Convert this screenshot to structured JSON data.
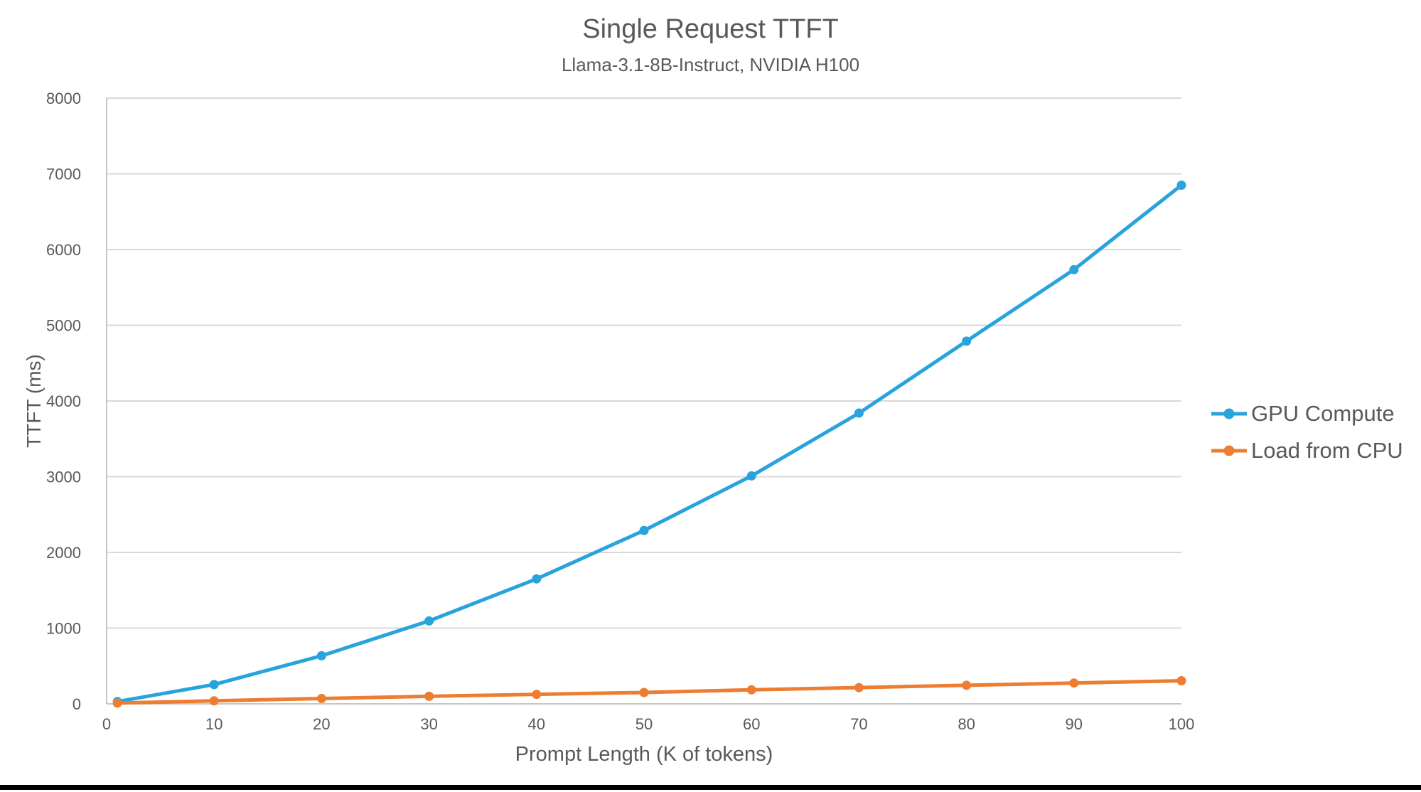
{
  "chart_data": {
    "type": "line",
    "title": "Single Request TTFT",
    "subtitle": "Llama-3.1-8B-Instruct, NVIDIA H100",
    "xlabel": "Prompt Length (K of tokens)",
    "ylabel": "TTFT (ms)",
    "x": [
      1,
      10,
      20,
      30,
      40,
      50,
      60,
      70,
      80,
      90,
      100
    ],
    "series": [
      {
        "name": "GPU Compute",
        "color": "#29A3DC",
        "values": [
          30,
          255,
          635,
          1095,
          1650,
          2290,
          3010,
          3840,
          4790,
          5735,
          6850
        ]
      },
      {
        "name": "Load from CPU",
        "color": "#ED7D31",
        "values": [
          10,
          40,
          70,
          100,
          125,
          150,
          185,
          215,
          245,
          275,
          305
        ]
      }
    ],
    "xticks": [
      0,
      10,
      20,
      30,
      40,
      50,
      60,
      70,
      80,
      90,
      100
    ],
    "yticks": [
      0,
      1000,
      2000,
      3000,
      4000,
      5000,
      6000,
      7000,
      8000
    ],
    "xlim": [
      0,
      100
    ],
    "ylim": [
      0,
      8000
    ],
    "grid": "horizontal-only",
    "legend_position": "right-middle",
    "marker": "circle"
  },
  "colors": {
    "text": "#595959",
    "tick_text": "#595959",
    "gridline": "#D9D9D9",
    "axis_line": "#C6C6C6",
    "background": "#FFFFFF",
    "bottom_bar": "#000000"
  }
}
